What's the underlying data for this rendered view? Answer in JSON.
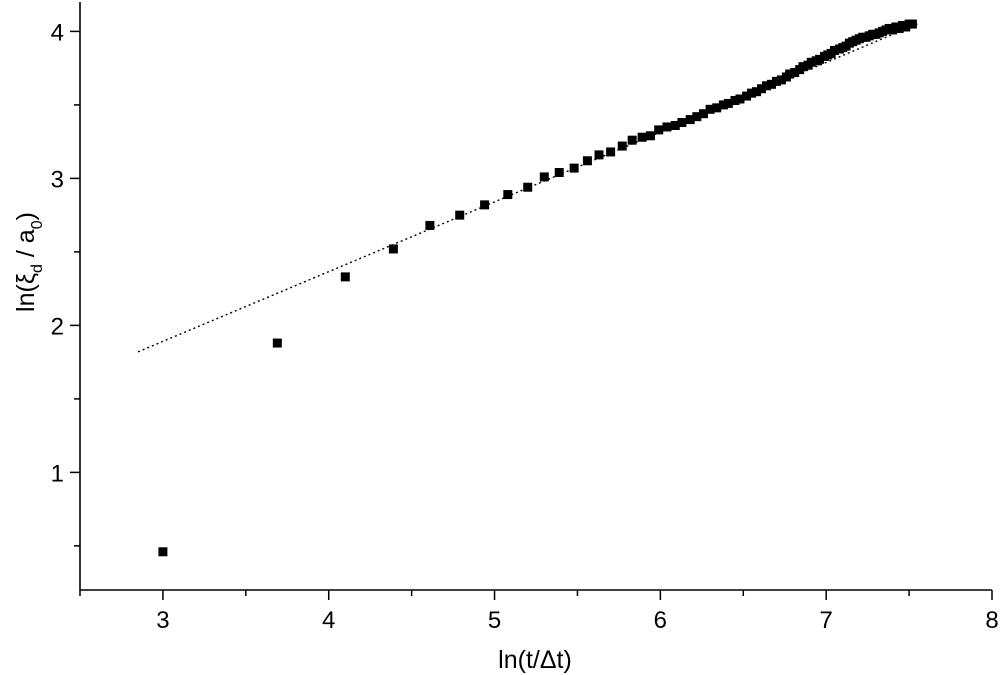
{
  "chart_data": {
    "type": "scatter",
    "title": "",
    "xlabel": "ln(t/Δt)",
    "ylabel": {
      "base": "ln(ξ",
      "sub1": "d",
      "mid": " / a",
      "sub2": "0",
      "end": ")"
    },
    "xlim": [
      2.5,
      8
    ],
    "ylim": [
      0.2,
      4.2
    ],
    "x_ticks": [
      3,
      4,
      5,
      6,
      7,
      8
    ],
    "y_ticks": [
      1,
      2,
      3,
      4
    ],
    "x_tick_labels": [
      "3",
      "4",
      "5",
      "6",
      "7",
      "8"
    ],
    "y_tick_labels": [
      "1",
      "2",
      "3",
      "4"
    ],
    "x_minor_step": 0.5,
    "y_minor_step": 0.5,
    "grid": false,
    "legend": "none",
    "marker": "filled-square",
    "series": [
      {
        "points": [
          [
            3.0,
            0.46
          ],
          [
            3.69,
            1.88
          ],
          [
            4.1,
            2.33
          ],
          [
            4.39,
            2.52
          ],
          [
            4.61,
            2.68
          ],
          [
            4.79,
            2.75
          ],
          [
            4.94,
            2.82
          ],
          [
            5.08,
            2.89
          ],
          [
            5.2,
            2.94
          ],
          [
            5.3,
            3.01
          ],
          [
            5.39,
            3.04
          ],
          [
            5.48,
            3.07
          ],
          [
            5.56,
            3.12
          ],
          [
            5.63,
            3.16
          ],
          [
            5.7,
            3.18
          ],
          [
            5.77,
            3.22
          ],
          [
            5.83,
            3.26
          ],
          [
            5.89,
            3.28
          ],
          [
            5.94,
            3.29
          ],
          [
            5.99,
            3.33
          ],
          [
            6.04,
            3.35
          ],
          [
            6.09,
            3.36
          ],
          [
            6.13,
            3.38
          ],
          [
            6.18,
            3.4
          ],
          [
            6.22,
            3.42
          ],
          [
            6.26,
            3.44
          ],
          [
            6.3,
            3.47
          ],
          [
            6.34,
            3.48
          ],
          [
            6.38,
            3.5
          ],
          [
            6.41,
            3.51
          ],
          [
            6.45,
            3.53
          ],
          [
            6.48,
            3.54
          ],
          [
            6.52,
            3.56
          ],
          [
            6.55,
            3.58
          ],
          [
            6.58,
            3.59
          ],
          [
            6.61,
            3.61
          ],
          [
            6.64,
            3.63
          ],
          [
            6.67,
            3.64
          ],
          [
            6.7,
            3.66
          ],
          [
            6.73,
            3.67
          ],
          [
            6.76,
            3.69
          ],
          [
            6.78,
            3.71
          ],
          [
            6.81,
            3.72
          ],
          [
            6.84,
            3.74
          ],
          [
            6.86,
            3.76
          ],
          [
            6.89,
            3.77
          ],
          [
            6.91,
            3.79
          ],
          [
            6.94,
            3.8
          ],
          [
            6.96,
            3.81
          ],
          [
            6.99,
            3.83
          ],
          [
            7.01,
            3.84
          ],
          [
            7.03,
            3.85
          ],
          [
            7.05,
            3.87
          ],
          [
            7.08,
            3.88
          ],
          [
            7.1,
            3.89
          ],
          [
            7.12,
            3.9
          ],
          [
            7.14,
            3.92
          ],
          [
            7.16,
            3.93
          ],
          [
            7.18,
            3.94
          ],
          [
            7.2,
            3.95
          ],
          [
            7.22,
            3.96
          ],
          [
            7.24,
            3.96
          ],
          [
            7.26,
            3.97
          ],
          [
            7.28,
            3.98
          ],
          [
            7.3,
            3.98
          ],
          [
            7.32,
            3.99
          ],
          [
            7.34,
            4.0
          ],
          [
            7.36,
            4.01
          ],
          [
            7.38,
            4.02
          ],
          [
            7.4,
            4.01
          ],
          [
            7.42,
            4.03
          ],
          [
            7.44,
            4.02
          ],
          [
            7.46,
            4.04
          ],
          [
            7.48,
            4.03
          ],
          [
            7.5,
            4.05
          ],
          [
            7.52,
            4.05
          ]
        ]
      }
    ],
    "fit_line": {
      "style": "dotted",
      "x": [
        2.85,
        7.55
      ],
      "y": [
        1.82,
        4.05
      ]
    }
  }
}
